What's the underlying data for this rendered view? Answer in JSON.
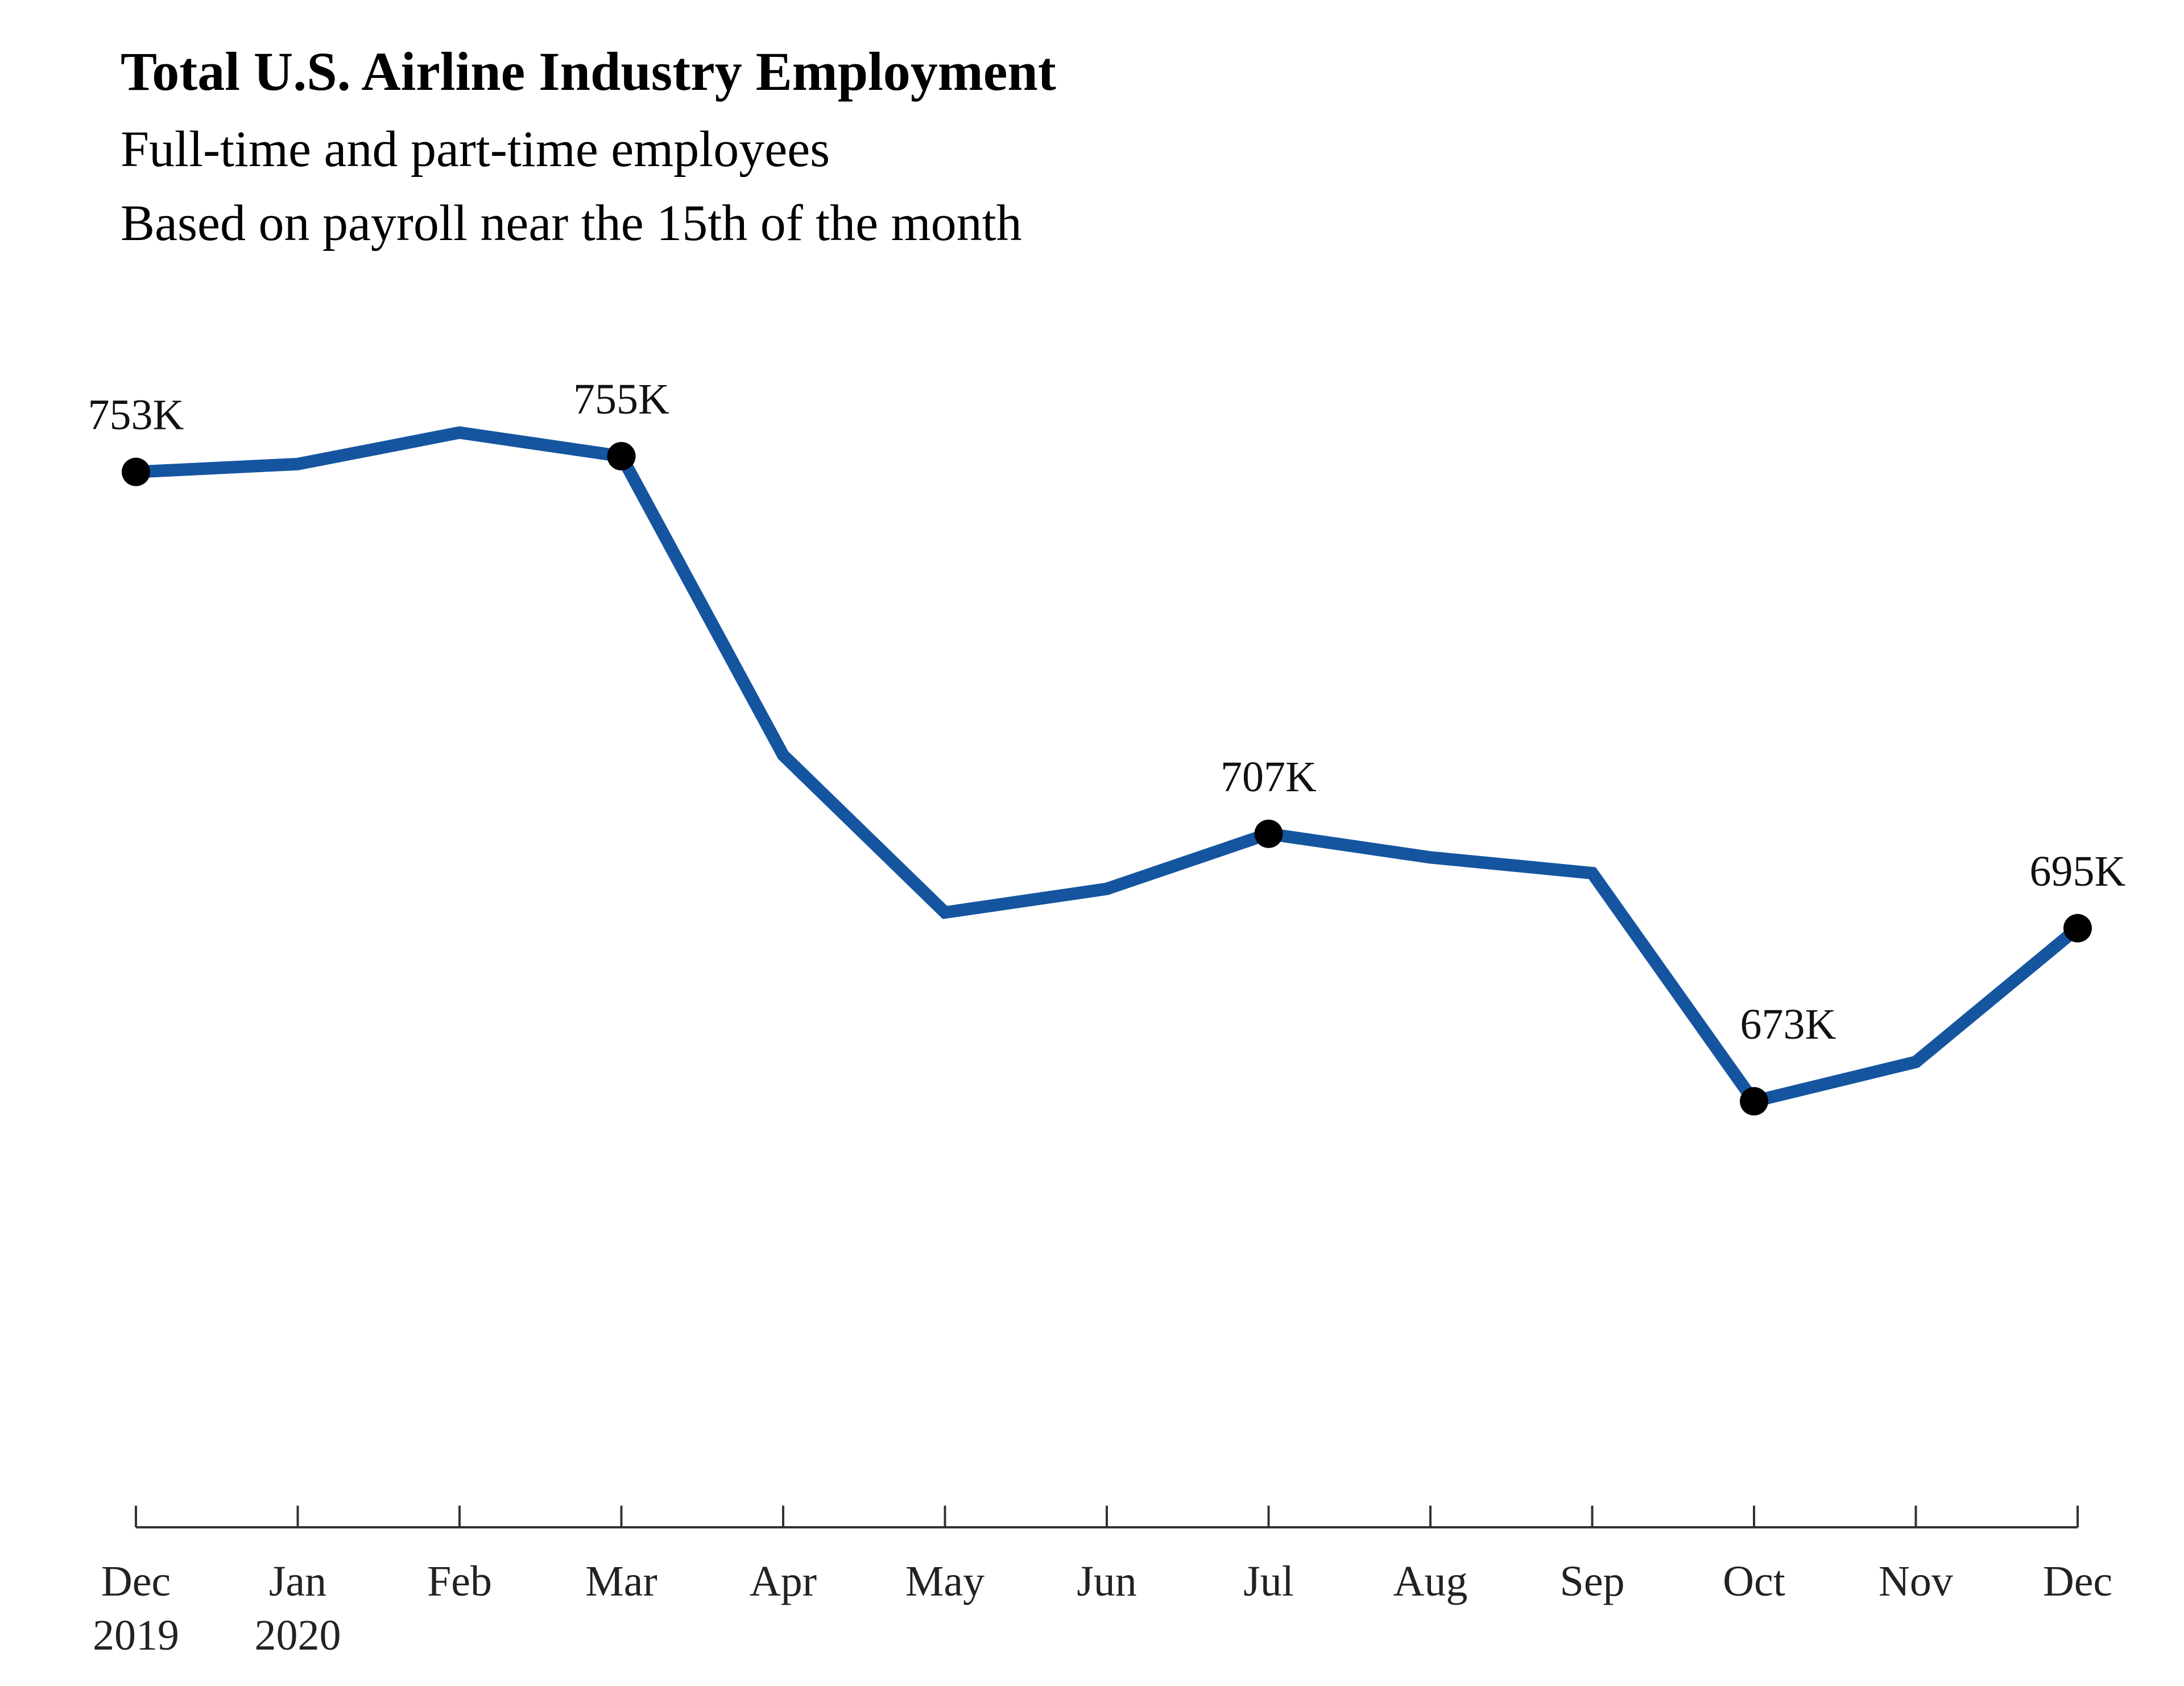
{
  "chart_data": {
    "type": "line",
    "title": "Total U.S. Airline Industry Employment",
    "subtitle": [
      "Full-time and part-time employees",
      "Based on payroll near the 15th of the month"
    ],
    "categories": [
      {
        "month": "Dec",
        "year": "2019"
      },
      {
        "month": "Jan",
        "year": "2020"
      },
      {
        "month": "Feb",
        "year": ""
      },
      {
        "month": "Mar",
        "year": ""
      },
      {
        "month": "Apr",
        "year": ""
      },
      {
        "month": "May",
        "year": ""
      },
      {
        "month": "Jun",
        "year": ""
      },
      {
        "month": "Jul",
        "year": ""
      },
      {
        "month": "Aug",
        "year": ""
      },
      {
        "month": "Sep",
        "year": ""
      },
      {
        "month": "Oct",
        "year": ""
      },
      {
        "month": "Nov",
        "year": ""
      },
      {
        "month": "Dec",
        "year": ""
      }
    ],
    "values": [
      753,
      754,
      758,
      755,
      717,
      697,
      700,
      707,
      704,
      702,
      673,
      678,
      695
    ],
    "unit": "thousands",
    "data_labels": [
      {
        "index": 0,
        "text": "753K"
      },
      {
        "index": 3,
        "text": "755K"
      },
      {
        "index": 7,
        "text": "707K"
      },
      {
        "index": 10,
        "text": "673K"
      },
      {
        "index": 12,
        "text": "695K"
      }
    ],
    "line_color": "#1555a0",
    "marker_color": "#000000",
    "grid": false,
    "legend": "none",
    "y_axis_visible": false
  }
}
